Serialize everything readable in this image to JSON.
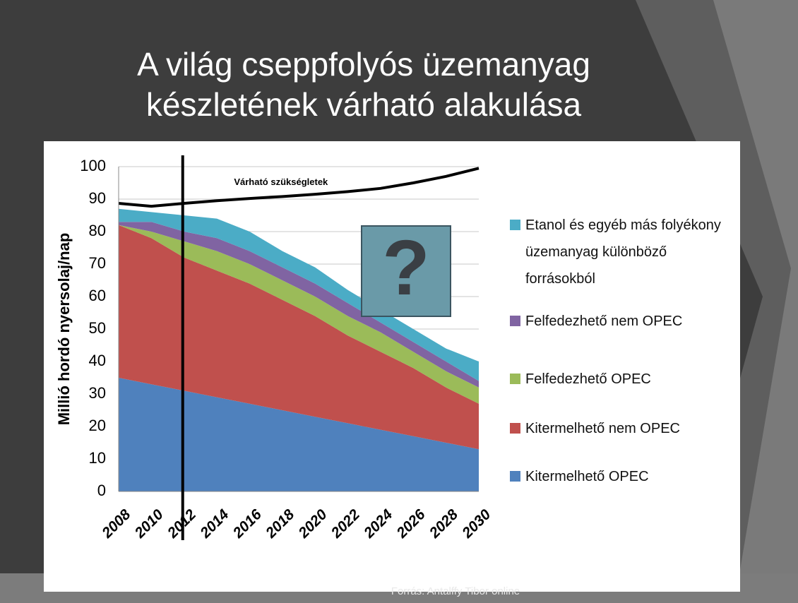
{
  "chart_data": {
    "type": "stacked_area",
    "title": [
      "A világ cseppfolyós üzemanyag",
      "készletének várható alakulása"
    ],
    "y_label": "Millió hordó nyersolaj/nap",
    "categories": [
      "2008",
      "2010",
      "2012",
      "2014",
      "2016",
      "2018",
      "2020",
      "2022",
      "2024",
      "2026",
      "2028",
      "2030"
    ],
    "series": [
      {
        "name": "Kitermelhető  OPEC",
        "color": "#4f81bd",
        "values": [
          35,
          33,
          31,
          29,
          27,
          25,
          23,
          21,
          19,
          17,
          15,
          13
        ]
      },
      {
        "name": "Kitermelhető nem OPEC",
        "color": "#c0504d",
        "values": [
          47,
          45,
          41,
          39,
          37,
          34,
          31,
          27,
          24,
          21,
          17,
          14
        ]
      },
      {
        "name": "Felfedezhető OPEC",
        "color": "#9bbb59",
        "values": [
          0,
          2,
          5,
          6,
          6,
          6,
          6,
          6,
          6,
          5,
          5,
          5
        ]
      },
      {
        "name": "Felfedezhető nem OPEC",
        "color": "#8064a2",
        "values": [
          1,
          3,
          3,
          4,
          4,
          4,
          4,
          4,
          3,
          3,
          3,
          2
        ]
      },
      {
        "name": "Etanol és egyéb más folyékony üzemanyag különböző forrásokból",
        "color": "#4bacc6",
        "values": [
          4,
          3,
          5,
          6,
          6,
          5,
          5,
          4,
          4,
          4,
          4,
          6
        ]
      },
      {
        "name": "Várható szükségletek",
        "type": "line",
        "color": "#000000",
        "values": [
          88.7,
          87.8,
          88.7,
          89.5,
          90.2,
          90.8,
          91.5,
          92.3,
          93.3,
          95,
          97,
          99.5
        ]
      }
    ],
    "ylim": [
      0,
      100
    ],
    "yticks": [
      0,
      10,
      20,
      30,
      40,
      50,
      60,
      70,
      80,
      90,
      100
    ],
    "grid": true,
    "annotations": [
      "?"
    ],
    "source": "Forrás: Antalffy Tibor online"
  }
}
